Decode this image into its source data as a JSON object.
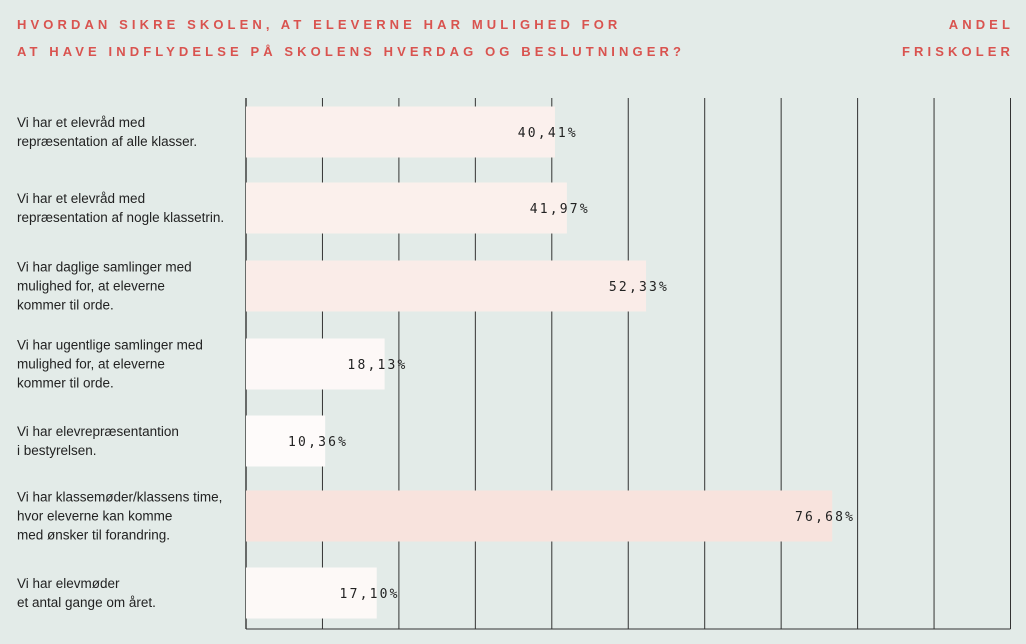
{
  "header": {
    "question_line1": "HVORDAN SIKRE SKOLEN, AT ELEVERNE HAR MULIGHED FOR",
    "question_line2": "AT HAVE INDFLYDELSE PÅ SKOLENS HVERDAG OG BESLUTNINGER?",
    "column_line1": "ANDEL",
    "column_line2": "FRISKOLER"
  },
  "chart_data": {
    "type": "bar",
    "orientation": "horizontal",
    "title": "HVORDAN SIKRE SKOLEN, AT ELEVERNE HAR MULIGHED FOR AT HAVE INDFLYDELSE PÅ SKOLENS HVERDAG OG BESLUTNINGER?",
    "categories": [
      "Vi har et elevråd med\nrepræsentation af alle klasser.",
      "Vi har et elevråd med\nrepræsentation af nogle klassetrin.",
      "Vi har daglige samlinger med\nmulighed for, at eleverne\nkommer til orde.",
      "Vi har ugentlige samlinger med\nmulighed for, at eleverne\nkommer til orde.",
      "Vi har elevrepræsentantion\ni bestyrelsen.",
      "Vi har klassemøder/klassens time,\nhvor eleverne kan komme\nmed ønsker til forandring.",
      "Vi har elevmøder\net antal gange om året."
    ],
    "values": [
      40.41,
      41.97,
      52.33,
      18.13,
      10.36,
      76.68,
      17.1
    ],
    "value_labels": [
      "40,41%",
      "41,97%",
      "52,33%",
      "18,13%",
      "10,36%",
      "76,68%",
      "17,10%"
    ],
    "xlim": [
      0,
      100
    ],
    "grid": true,
    "colors": {
      "background": "#e3ebe8",
      "title": "#d9534f",
      "grid": "#333333",
      "bar_scale": [
        "#ffffff",
        "#f8e3dd"
      ]
    }
  }
}
